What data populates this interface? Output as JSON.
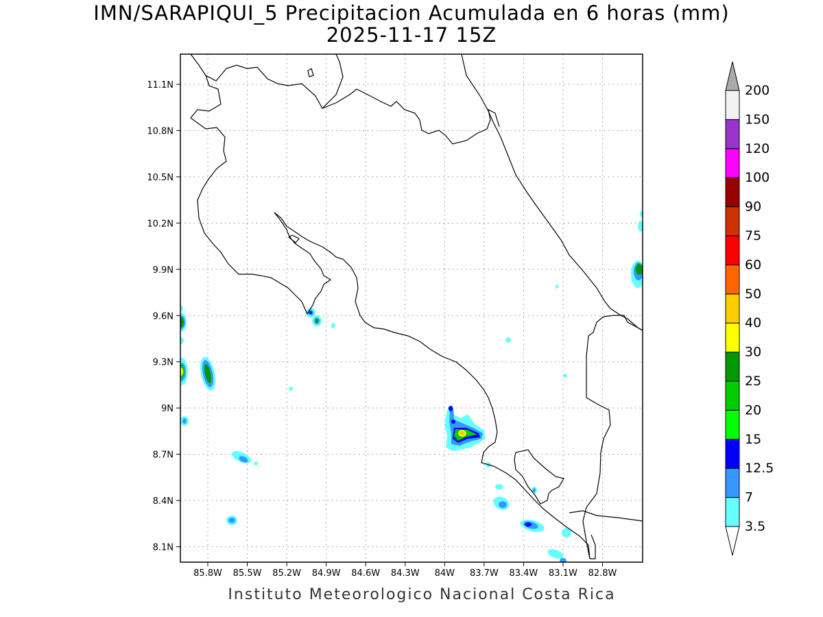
{
  "map": {
    "title_line1": "IMN/SARAPIQUI_5 Precipitacion Acumulada en 6 horas (mm)",
    "title_line2": "2025-11-17 15Z",
    "footer": "Instituto Meteorologico Nacional Costa Rica",
    "lon_labels": [
      "85.8W",
      "85.5W",
      "85.2W",
      "84.9W",
      "84.6W",
      "84.3W",
      "84W",
      "83.7W",
      "83.4W",
      "83.1W",
      "82.8W"
    ],
    "lat_labels": [
      "11.1N",
      "10.8N",
      "10.5N",
      "10.2N",
      "9.9N",
      "9.6N",
      "9.3N",
      "9N",
      "8.7N",
      "8.4N",
      "8.1N"
    ],
    "grid": "dotted"
  },
  "colorbar": {
    "levels": [
      "3.5",
      "7",
      "12.5",
      "15",
      "20",
      "25",
      "30",
      "40",
      "50",
      "60",
      "75",
      "90",
      "100",
      "120",
      "150",
      "200"
    ],
    "colors": [
      "#66ffff",
      "#3399ff",
      "#0000ff",
      "#00ff00",
      "#00cc00",
      "#009900",
      "#ffff00",
      "#ffcc00",
      "#ff6600",
      "#ff0000",
      "#cc3300",
      "#990000",
      "#ff00ff",
      "#9933cc",
      "#f2f2f2"
    ],
    "extend_color": "#aaaaaa"
  }
}
